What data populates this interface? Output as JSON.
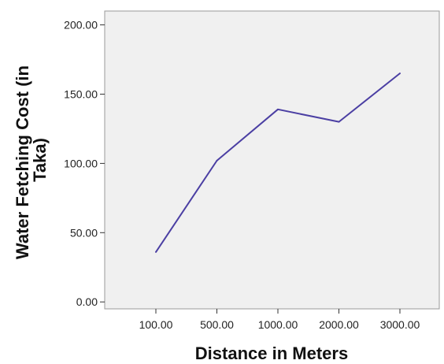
{
  "chart_data": {
    "type": "line",
    "title": "",
    "xlabel": "Distance in Meters",
    "ylabel_lines": [
      "Water Fetching  Cost (in",
      "Taka)"
    ],
    "categories": [
      "100.00",
      "500.00",
      "1000.00",
      "2000.00",
      "3000.00"
    ],
    "series": [
      {
        "values": [
          36,
          102,
          139,
          130,
          165
        ]
      }
    ],
    "y_ticks": [
      "0.00",
      "50.00",
      "100.00",
      "150.00",
      "200.00"
    ],
    "ylim": [
      -5,
      210
    ],
    "grid": false,
    "colors": {
      "plot_background": "#f0f0f0",
      "line": "#4b3fa3",
      "frame": "#9a9a9a"
    }
  }
}
